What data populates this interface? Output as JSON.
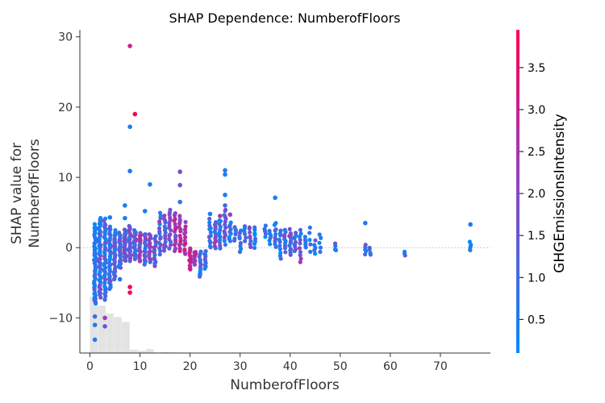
{
  "chart_data": {
    "type": "scatter",
    "title": "SHAP Dependence: NumberofFloors",
    "xlabel": "NumberofFloors",
    "ylabel_lines": [
      "SHAP value for",
      "NumberofFloors"
    ],
    "xlim": [
      -2,
      80
    ],
    "ylim": [
      -15,
      31
    ],
    "xticks": [
      0,
      10,
      20,
      30,
      40,
      50,
      60,
      70
    ],
    "yticks": [
      -10,
      0,
      10,
      20,
      30
    ],
    "ytick_labels": [
      "−10",
      "0",
      "10",
      "20",
      "30"
    ],
    "colorbar": {
      "label": "GHGEmissionsIntensity",
      "range": [
        0.1,
        3.95
      ],
      "ticks": [
        0.5,
        1.0,
        1.5,
        2.0,
        2.5,
        3.0,
        3.5
      ],
      "tick_labels": [
        "0.5",
        "1.0",
        "1.5",
        "2.0",
        "2.5",
        "3.0",
        "3.5"
      ],
      "color_low": "#008bfb",
      "color_high": "#ff0052"
    },
    "histogram": {
      "bin_width": 1.6,
      "bins": [
        {
          "x": 0.0,
          "count": 100
        },
        {
          "x": 1.6,
          "count": 84
        },
        {
          "x": 3.2,
          "count": 70
        },
        {
          "x": 4.8,
          "count": 64
        },
        {
          "x": 6.4,
          "count": 55
        },
        {
          "x": 8.0,
          "count": 6
        },
        {
          "x": 9.6,
          "count": 4
        },
        {
          "x": 11.2,
          "count": 7
        },
        {
          "x": 12.8,
          "count": 1
        },
        {
          "x": 14.4,
          "count": 2
        },
        {
          "x": 16.0,
          "count": 1
        },
        {
          "x": 24.0,
          "count": 0.5
        },
        {
          "x": 36.0,
          "count": 0.5
        },
        {
          "x": 40.0,
          "count": 0.5
        }
      ]
    },
    "clusters": [
      {
        "x": 1,
        "ymin": -8.0,
        "ymax": 3.2,
        "n": 55,
        "color": 0.6
      },
      {
        "x": 2,
        "ymin": -7.0,
        "ymax": 4.2,
        "n": 50,
        "color": 0.9
      },
      {
        "x": 3,
        "ymin": -7.5,
        "ymax": 4.0,
        "n": 45,
        "color": 1.0
      },
      {
        "x": 4,
        "ymin": -6.0,
        "ymax": 3.0,
        "n": 40,
        "color": 0.8
      },
      {
        "x": 5,
        "ymin": -4.5,
        "ymax": 2.5,
        "n": 35,
        "color": 1.2
      },
      {
        "x": 6,
        "ymin": -3.0,
        "ymax": 2.0,
        "n": 30,
        "color": 1.0
      },
      {
        "x": 7,
        "ymin": -2.0,
        "ymax": 2.5,
        "n": 28,
        "color": 1.5
      },
      {
        "x": 8,
        "ymin": -2.0,
        "ymax": 3.0,
        "n": 26,
        "color": 1.6
      },
      {
        "x": 9,
        "ymin": -1.5,
        "ymax": 2.5,
        "n": 22,
        "color": 1.2
      },
      {
        "x": 10,
        "ymin": -2.0,
        "ymax": 2.0,
        "n": 20,
        "color": 2.2
      },
      {
        "x": 11,
        "ymin": -2.5,
        "ymax": 2.0,
        "n": 18,
        "color": 1.4
      },
      {
        "x": 12,
        "ymin": -2.0,
        "ymax": 2.0,
        "n": 16,
        "color": 2.0
      },
      {
        "x": 13,
        "ymin": -2.5,
        "ymax": 1.5,
        "n": 15,
        "color": 1.3
      },
      {
        "x": 14,
        "ymin": -1.0,
        "ymax": 5.0,
        "n": 15,
        "color": 1.1
      },
      {
        "x": 15,
        "ymin": -0.5,
        "ymax": 4.5,
        "n": 15,
        "color": 1.5
      },
      {
        "x": 16,
        "ymin": 0.0,
        "ymax": 5.5,
        "n": 15,
        "color": 1.7
      },
      {
        "x": 17,
        "ymin": -0.5,
        "ymax": 5.0,
        "n": 15,
        "color": 2.3
      },
      {
        "x": 18,
        "ymin": -0.5,
        "ymax": 4.5,
        "n": 14,
        "color": 2.6
      },
      {
        "x": 19,
        "ymin": -1.0,
        "ymax": 3.5,
        "n": 12,
        "color": 2.4
      },
      {
        "x": 20,
        "ymin": -3.0,
        "ymax": 0.0,
        "n": 12,
        "color": 2.8
      },
      {
        "x": 21,
        "ymin": -2.5,
        "ymax": -0.5,
        "n": 12,
        "color": 2.5
      },
      {
        "x": 22,
        "ymin": -4.0,
        "ymax": -0.5,
        "n": 10,
        "color": 1.0
      },
      {
        "x": 23,
        "ymin": -3.0,
        "ymax": -0.5,
        "n": 10,
        "color": 0.7
      },
      {
        "x": 24,
        "ymin": 0.0,
        "ymax": 4.0,
        "n": 12,
        "color": 0.8
      },
      {
        "x": 25,
        "ymin": 0.0,
        "ymax": 3.5,
        "n": 12,
        "color": 1.5
      },
      {
        "x": 26,
        "ymin": 0.0,
        "ymax": 4.0,
        "n": 12,
        "color": 0.7
      },
      {
        "x": 27,
        "ymin": 0.5,
        "ymax": 5.5,
        "n": 14,
        "color": 1.3
      },
      {
        "x": 28,
        "ymin": 1.0,
        "ymax": 3.5,
        "n": 10,
        "color": 0.6
      },
      {
        "x": 29,
        "ymin": 1.0,
        "ymax": 3.0,
        "n": 6,
        "color": 0.8
      },
      {
        "x": 30,
        "ymin": -0.5,
        "ymax": 2.5,
        "n": 8,
        "color": 0.6
      },
      {
        "x": 31,
        "ymin": 1.0,
        "ymax": 3.0,
        "n": 6,
        "color": 0.9
      },
      {
        "x": 32,
        "ymin": 0.0,
        "ymax": 3.0,
        "n": 8,
        "color": 1.3
      },
      {
        "x": 33,
        "ymin": 0.0,
        "ymax": 3.0,
        "n": 8,
        "color": 0.5
      },
      {
        "x": 35,
        "ymin": 1.5,
        "ymax": 3.0,
        "n": 5,
        "color": 0.6
      },
      {
        "x": 36,
        "ymin": 0.5,
        "ymax": 2.5,
        "n": 6,
        "color": 0.5
      },
      {
        "x": 37,
        "ymin": 0.0,
        "ymax": 3.5,
        "n": 10,
        "color": 0.7
      },
      {
        "x": 38,
        "ymin": -1.5,
        "ymax": 2.5,
        "n": 10,
        "color": 0.6
      },
      {
        "x": 39,
        "ymin": -0.5,
        "ymax": 2.5,
        "n": 10,
        "color": 1.0
      },
      {
        "x": 40,
        "ymin": -1.0,
        "ymax": 2.5,
        "n": 12,
        "color": 1.4
      },
      {
        "x": 41,
        "ymin": -0.5,
        "ymax": 2.0,
        "n": 10,
        "color": 0.8
      },
      {
        "x": 42,
        "ymin": -2.0,
        "ymax": 2.5,
        "n": 10,
        "color": 1.2
      },
      {
        "x": 43,
        "ymin": 0.0,
        "ymax": 1.5,
        "n": 5,
        "color": 0.6
      },
      {
        "x": 44,
        "ymin": -0.5,
        "ymax": 3.0,
        "n": 5,
        "color": 0.8
      },
      {
        "x": 45,
        "ymin": -1.0,
        "ymax": 1.0,
        "n": 5,
        "color": 1.3
      },
      {
        "x": 46,
        "ymin": -0.5,
        "ymax": 2.0,
        "n": 5,
        "color": 0.6
      },
      {
        "x": 49,
        "ymin": -0.5,
        "ymax": 0.5,
        "n": 4,
        "color": 0.5
      },
      {
        "x": 55,
        "ymin": -1.0,
        "ymax": 0.5,
        "n": 5,
        "color": 0.5
      },
      {
        "x": 56,
        "ymin": -1.0,
        "ymax": 0.0,
        "n": 4,
        "color": 0.5
      },
      {
        "x": 63,
        "ymin": -1.0,
        "ymax": -0.5,
        "n": 3,
        "color": 0.5
      },
      {
        "x": 76,
        "ymin": -0.5,
        "ymax": 0.8,
        "n": 5,
        "color": 0.5
      }
    ],
    "points": [
      {
        "x": 8,
        "y": 28.7,
        "color": 3.0
      },
      {
        "x": 9,
        "y": 19.0,
        "color": 3.8
      },
      {
        "x": 8,
        "y": 17.2,
        "color": 0.5
      },
      {
        "x": 8,
        "y": 10.9,
        "color": 0.5
      },
      {
        "x": 7,
        "y": 6.0,
        "color": 0.5
      },
      {
        "x": 12,
        "y": 9.0,
        "color": 0.5
      },
      {
        "x": 18,
        "y": 10.8,
        "color": 1.8
      },
      {
        "x": 18,
        "y": 8.9,
        "color": 1.5
      },
      {
        "x": 18,
        "y": 6.5,
        "color": 0.8
      },
      {
        "x": 27,
        "y": 11.0,
        "color": 0.5
      },
      {
        "x": 27,
        "y": 10.4,
        "color": 0.5
      },
      {
        "x": 27,
        "y": 7.5,
        "color": 0.5
      },
      {
        "x": 27,
        "y": 6.0,
        "color": 1.0
      },
      {
        "x": 37,
        "y": 7.1,
        "color": 0.5
      },
      {
        "x": 55,
        "y": 3.5,
        "color": 0.5
      },
      {
        "x": 76,
        "y": 3.3,
        "color": 0.5
      },
      {
        "x": 7,
        "y": 4.2,
        "color": 0.5
      },
      {
        "x": 4,
        "y": 4.3,
        "color": 0.5
      },
      {
        "x": 11,
        "y": 5.2,
        "color": 0.5
      },
      {
        "x": 24,
        "y": 4.8,
        "color": 0.5
      },
      {
        "x": 26,
        "y": 4.5,
        "color": 2.5
      },
      {
        "x": 28,
        "y": 4.7,
        "color": 2.0
      },
      {
        "x": 8,
        "y": -5.6,
        "color": 3.8
      },
      {
        "x": 8,
        "y": -6.4,
        "color": 3.8
      },
      {
        "x": 3,
        "y": -10.0,
        "color": 2.2
      },
      {
        "x": 3,
        "y": -11.2,
        "color": 1.5
      },
      {
        "x": 1,
        "y": -11.0,
        "color": 0.5
      },
      {
        "x": 1,
        "y": -13.1,
        "color": 0.5
      },
      {
        "x": 1,
        "y": -9.8,
        "color": 0.8
      },
      {
        "x": 6,
        "y": -4.5,
        "color": 0.5
      },
      {
        "x": 20,
        "y": -3.0,
        "color": 3.0
      },
      {
        "x": 22,
        "y": -3.8,
        "color": 0.5
      }
    ]
  }
}
